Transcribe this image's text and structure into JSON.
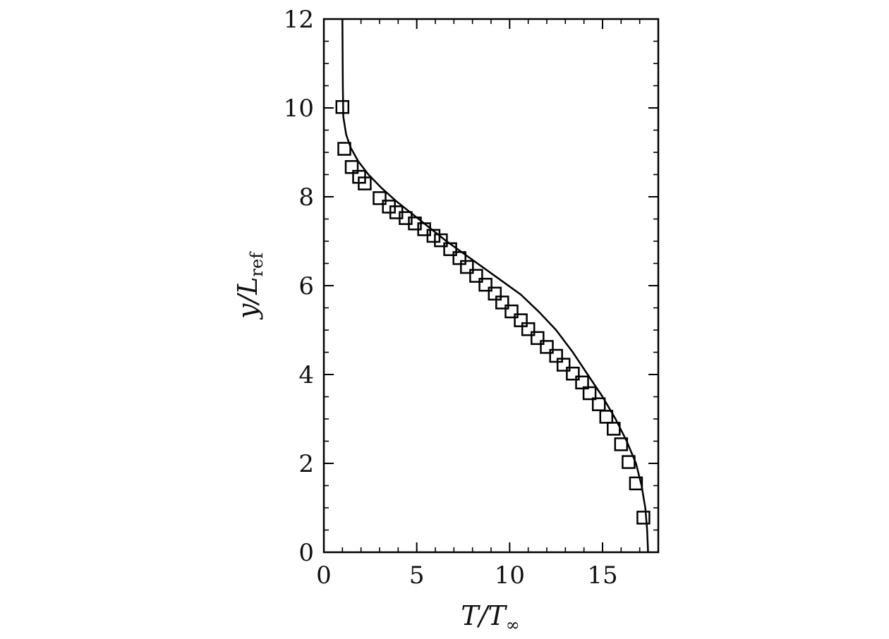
{
  "chart_data": {
    "type": "scatter",
    "title": "",
    "xlabel": {
      "main": "T/T",
      "sub": "∞"
    },
    "ylabel": {
      "main": "y/L",
      "sub": "ref"
    },
    "xlim": [
      0,
      18
    ],
    "ylim": [
      0,
      12
    ],
    "x_ticks": [
      0,
      5,
      10,
      15
    ],
    "x_tick_labels": [
      "0",
      "5",
      "10",
      "15"
    ],
    "y_ticks": [
      0,
      2,
      4,
      6,
      8,
      10,
      12
    ],
    "y_tick_labels": [
      "0",
      "2",
      "4",
      "6",
      "8",
      "10",
      "12"
    ],
    "x_minor_step": 1,
    "y_minor_step": 0.5,
    "grid": false,
    "legend": "none",
    "series": [
      {
        "kind": "line",
        "color": "#000000",
        "x": [
          17.45,
          17.4,
          17.3,
          17.1,
          16.8,
          16.3,
          15.7,
          15.0,
          14.2,
          13.4,
          12.5,
          11.6,
          10.6,
          9.6,
          8.6,
          7.6,
          6.6,
          5.7,
          4.8,
          3.9,
          3.1,
          2.4,
          1.85,
          1.45,
          1.2,
          1.05,
          1.02,
          1.0
        ],
        "y": [
          0.0,
          0.5,
          1.0,
          1.5,
          2.0,
          2.5,
          3.0,
          3.5,
          4.0,
          4.5,
          5.0,
          5.4,
          5.8,
          6.1,
          6.4,
          6.7,
          7.0,
          7.3,
          7.6,
          7.9,
          8.2,
          8.5,
          8.8,
          9.1,
          9.4,
          9.8,
          10.5,
          12.0
        ]
      },
      {
        "kind": "markers",
        "marker": "square",
        "color": "#000000",
        "x": [
          17.2,
          16.8,
          16.4,
          16.0,
          15.6,
          15.2,
          14.8,
          14.3,
          13.9,
          13.4,
          12.9,
          12.5,
          12.0,
          11.5,
          11.0,
          10.6,
          10.1,
          9.6,
          9.2,
          8.7,
          8.2,
          7.7,
          7.3,
          6.8,
          6.3,
          5.9,
          5.4,
          4.9,
          4.4,
          3.9,
          3.5,
          3.0,
          2.2,
          1.9,
          1.5,
          1.1,
          1.0
        ],
        "y": [
          0.78,
          1.55,
          2.03,
          2.43,
          2.78,
          3.05,
          3.33,
          3.58,
          3.82,
          4.02,
          4.22,
          4.42,
          4.62,
          4.82,
          5.02,
          5.22,
          5.42,
          5.62,
          5.82,
          6.02,
          6.22,
          6.42,
          6.62,
          6.82,
          7.02,
          7.12,
          7.27,
          7.4,
          7.52,
          7.65,
          7.78,
          7.97,
          8.3,
          8.45,
          8.67,
          9.08,
          10.02
        ]
      }
    ]
  }
}
